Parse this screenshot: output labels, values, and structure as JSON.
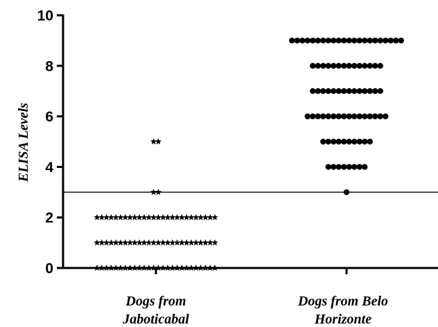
{
  "chart_data": {
    "type": "scatter",
    "title": "",
    "xlabel": "",
    "ylabel": "ELISA Levels",
    "ylim": [
      0,
      10
    ],
    "yticks": [
      0,
      2,
      4,
      6,
      8,
      10
    ],
    "grid": false,
    "legend": "none",
    "reference_line": {
      "y": 3
    },
    "categories": [
      {
        "line1": "Dogs from",
        "line2": "Jaboticabal"
      },
      {
        "line1": "Dogs from Belo",
        "line2": "Horizonte"
      }
    ],
    "groups": [
      {
        "category_index": 0,
        "marker": "star",
        "color": "#000000",
        "points": [
          {
            "y": 0,
            "count": 26
          },
          {
            "y": 1,
            "count": 26
          },
          {
            "y": 2,
            "count": 26
          },
          {
            "y": 3,
            "count": 2
          },
          {
            "y": 5,
            "count": 2
          }
        ]
      },
      {
        "category_index": 1,
        "marker": "circle",
        "color": "#000000",
        "points": [
          {
            "y": 3,
            "count": 1
          },
          {
            "y": 4,
            "count": 8
          },
          {
            "y": 5,
            "count": 10
          },
          {
            "y": 6,
            "count": 16
          },
          {
            "y": 7,
            "count": 14
          },
          {
            "y": 8,
            "count": 14
          },
          {
            "y": 9,
            "count": 22
          }
        ]
      }
    ]
  }
}
